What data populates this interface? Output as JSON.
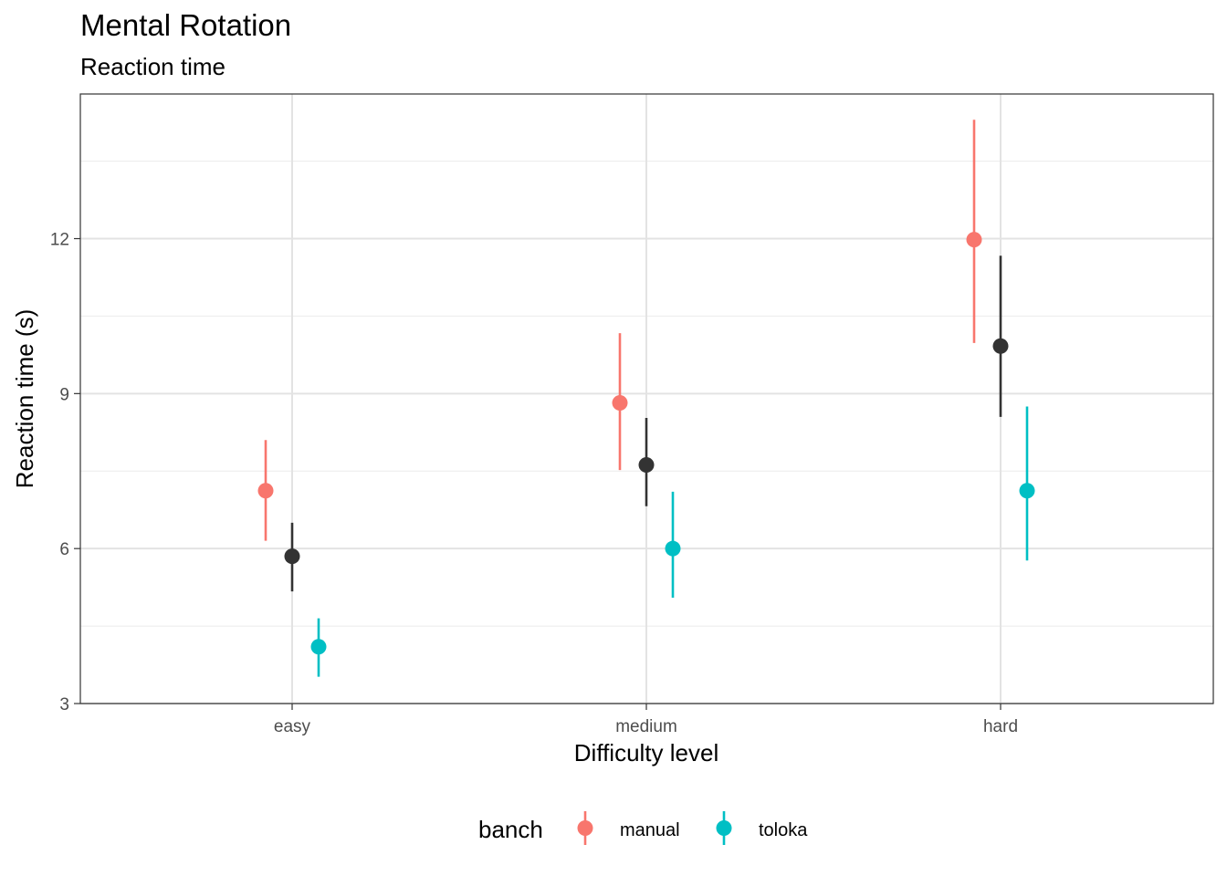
{
  "chart_data": {
    "type": "scatter",
    "title": "Mental Rotation",
    "subtitle": "Reaction time",
    "xlabel": "Difficulty level",
    "ylabel": "Reaction time (s)",
    "categories": [
      "easy",
      "medium",
      "hard"
    ],
    "ylim": [
      3,
      14.8
    ],
    "yticks": [
      3,
      6,
      9,
      12
    ],
    "grid": true,
    "legend": {
      "title": "banch",
      "position": "bottom"
    },
    "series": [
      {
        "name": "manual",
        "color": "#F8766D",
        "offset": -1,
        "values": [
          7.12,
          8.82,
          11.98
        ],
        "lower": [
          6.15,
          7.52,
          9.98
        ],
        "upper": [
          8.1,
          10.17,
          14.3
        ]
      },
      {
        "color": "#333333",
        "offset": 0,
        "values": [
          5.85,
          7.62,
          9.92
        ],
        "lower": [
          5.17,
          6.82,
          8.55
        ],
        "upper": [
          6.5,
          8.53,
          11.67
        ]
      },
      {
        "name": "toloka",
        "color": "#00BFC4",
        "offset": 1,
        "values": [
          4.1,
          6.0,
          7.12
        ],
        "lower": [
          3.52,
          5.05,
          5.77
        ],
        "upper": [
          4.65,
          7.1,
          8.75
        ]
      }
    ]
  }
}
